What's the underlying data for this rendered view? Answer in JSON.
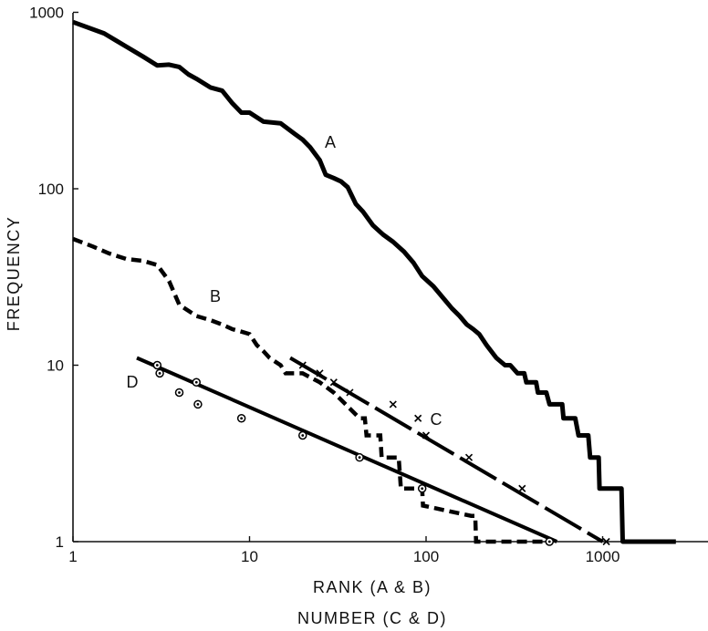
{
  "chart_data": {
    "type": "line",
    "x_scale": "log",
    "y_scale": "log",
    "xlim": [
      1,
      5000
    ],
    "ylim": [
      1,
      1000
    ],
    "grid": false,
    "legend": "none",
    "title": "",
    "xlabel": "RANK (A & B)",
    "xlabel2": "NUMBER (C & D)",
    "ylabel": "FREQUENCY",
    "x_ticks": [
      {
        "value": 1,
        "label": "1"
      },
      {
        "value": 10,
        "label": "10"
      },
      {
        "value": 100,
        "label": "100"
      },
      {
        "value": 1000,
        "label": "1000"
      }
    ],
    "y_ticks": [
      {
        "value": 1,
        "label": "1"
      },
      {
        "value": 10,
        "label": "10"
      },
      {
        "value": 100,
        "label": "100"
      },
      {
        "value": 1000,
        "label": "1000"
      }
    ],
    "series": [
      {
        "name": "A",
        "style": "thick-solid",
        "points": [
          [
            1,
            880
          ],
          [
            1.5,
            760
          ],
          [
            2,
            640
          ],
          [
            2.5,
            560
          ],
          [
            3,
            500
          ],
          [
            3.5,
            505
          ],
          [
            4,
            490
          ],
          [
            4.5,
            445
          ],
          [
            5,
            420
          ],
          [
            6,
            375
          ],
          [
            7,
            360
          ],
          [
            8,
            305
          ],
          [
            9,
            270
          ],
          [
            10,
            270
          ],
          [
            12,
            240
          ],
          [
            15,
            235
          ],
          [
            18,
            205
          ],
          [
            20,
            190
          ],
          [
            22,
            172
          ],
          [
            25,
            145
          ],
          [
            27,
            120
          ],
          [
            30,
            115
          ],
          [
            33,
            110
          ],
          [
            36,
            102
          ],
          [
            40,
            82
          ],
          [
            44,
            74
          ],
          [
            50,
            62
          ],
          [
            57,
            55
          ],
          [
            65,
            50
          ],
          [
            75,
            44
          ],
          [
            85,
            38
          ],
          [
            95,
            32
          ],
          [
            110,
            28
          ],
          [
            125,
            24
          ],
          [
            140,
            21
          ],
          [
            155,
            19
          ],
          [
            170,
            17
          ],
          [
            185,
            16
          ],
          [
            200,
            15
          ],
          [
            220,
            13
          ],
          [
            250,
            11
          ],
          [
            280,
            10
          ],
          [
            300,
            10
          ],
          [
            330,
            9
          ],
          [
            360,
            9
          ],
          [
            370,
            8
          ],
          [
            420,
            8
          ],
          [
            430,
            7
          ],
          [
            480,
            7
          ],
          [
            500,
            6
          ],
          [
            590,
            6
          ],
          [
            600,
            5
          ],
          [
            700,
            5
          ],
          [
            730,
            4
          ],
          [
            830,
            4
          ],
          [
            850,
            3
          ],
          [
            950,
            3
          ],
          [
            960,
            2
          ],
          [
            1280,
            2
          ],
          [
            1300,
            1
          ],
          [
            2600,
            1
          ]
        ]
      },
      {
        "name": "B",
        "style": "thick-dashed",
        "points": [
          [
            1,
            52
          ],
          [
            1.3,
            47
          ],
          [
            1.6,
            43
          ],
          [
            2,
            40
          ],
          [
            2.5,
            39
          ],
          [
            3,
            37
          ],
          [
            3.5,
            30
          ],
          [
            4,
            22
          ],
          [
            5,
            19
          ],
          [
            6,
            18
          ],
          [
            7,
            17
          ],
          [
            8,
            16
          ],
          [
            9,
            15.5
          ],
          [
            10,
            15
          ],
          [
            11,
            13
          ],
          [
            12,
            12
          ],
          [
            13,
            11
          ],
          [
            15,
            10
          ],
          [
            16,
            9
          ],
          [
            20,
            9
          ],
          [
            25,
            8
          ],
          [
            30,
            7
          ],
          [
            35,
            6
          ],
          [
            42,
            5
          ],
          [
            45,
            5
          ],
          [
            46,
            4
          ],
          [
            55,
            4
          ],
          [
            56,
            3
          ],
          [
            70,
            3
          ],
          [
            72,
            2
          ],
          [
            90,
            2
          ],
          [
            95,
            2
          ],
          [
            96,
            1.6
          ],
          [
            130,
            1.5
          ],
          [
            180,
            1.4
          ],
          [
            190,
            1.4
          ],
          [
            192,
            1
          ],
          [
            500,
            1
          ]
        ]
      },
      {
        "name": "C",
        "style": "long-dash",
        "line": [
          [
            17,
            11
          ],
          [
            1000,
            1
          ]
        ],
        "points": [
          [
            20,
            10
          ],
          [
            25,
            9
          ],
          [
            30,
            8
          ],
          [
            37,
            7
          ],
          [
            65,
            6
          ],
          [
            90,
            5
          ],
          [
            100,
            4
          ],
          [
            175,
            3
          ],
          [
            350,
            2
          ],
          [
            1050,
            1
          ]
        ]
      },
      {
        "name": "D",
        "style": "solid",
        "line": [
          [
            2.3,
            11
          ],
          [
            550,
            1
          ]
        ],
        "points": [
          [
            3,
            10
          ],
          [
            3.1,
            9
          ],
          [
            4,
            7
          ],
          [
            5,
            8
          ],
          [
            5.1,
            6
          ],
          [
            9,
            5
          ],
          [
            20,
            4
          ],
          [
            42,
            3
          ],
          [
            95,
            2
          ],
          [
            500,
            1
          ]
        ]
      }
    ]
  }
}
